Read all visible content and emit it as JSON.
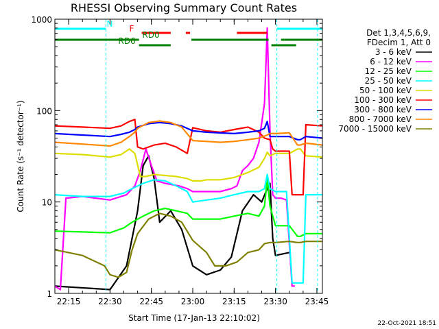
{
  "chart_data": {
    "type": "line",
    "title": "RHESSI Observing Summary Count Rates",
    "xlabel": "Start Time (17-Jan-13 22:10:02)",
    "ylabel": "Count Rate (s⁻¹ detector⁻¹)",
    "ylim": [
      1,
      1000
    ],
    "yscale": "log",
    "y_ticks": [
      {
        "value": 1,
        "label": "1"
      },
      {
        "value": 10,
        "label": "10"
      },
      {
        "value": 100,
        "label": "100"
      },
      {
        "value": 1000,
        "label": "1000"
      }
    ],
    "xlim_minutes": [
      0,
      97
    ],
    "x_ticks": [
      {
        "minute": 5,
        "label": "22:15"
      },
      {
        "minute": 20,
        "label": "22:30"
      },
      {
        "minute": 35,
        "label": "22:45"
      },
      {
        "minute": 50,
        "label": "23:00"
      },
      {
        "minute": 65,
        "label": "23:15"
      },
      {
        "minute": 80,
        "label": "23:30"
      },
      {
        "minute": 95,
        "label": "23:45"
      }
    ],
    "legend_header": [
      "Det 1,3,4,5,6,9,",
      "FDecim 1, Att 0"
    ],
    "legend_placement": "right",
    "series": [
      {
        "name": "3 - 6 keV",
        "color": "#000000",
        "points": [
          [
            0,
            1.2
          ],
          [
            20,
            1.1
          ],
          [
            26,
            2.0
          ],
          [
            30,
            8
          ],
          [
            32,
            25
          ],
          [
            34,
            32
          ],
          [
            36,
            18
          ],
          [
            38,
            6
          ],
          [
            42,
            8
          ],
          [
            46,
            5
          ],
          [
            50,
            2
          ],
          [
            55,
            1.6
          ],
          [
            60,
            1.8
          ],
          [
            64,
            2.5
          ],
          [
            68,
            8
          ],
          [
            72,
            12
          ],
          [
            75,
            10
          ],
          [
            77,
            14
          ],
          [
            78,
            16
          ],
          [
            79,
            4
          ],
          [
            80,
            2.6
          ],
          [
            85,
            2.8
          ]
        ]
      },
      {
        "name": "6 - 12 keV",
        "color": "#ff00ff",
        "points": [
          [
            0,
            1.2
          ],
          [
            2,
            1.1
          ],
          [
            4,
            11
          ],
          [
            10,
            11.5
          ],
          [
            20,
            10.5
          ],
          [
            26,
            12
          ],
          [
            29,
            15
          ],
          [
            31,
            22
          ],
          [
            33,
            38
          ],
          [
            35,
            25
          ],
          [
            37,
            17
          ],
          [
            40,
            16
          ],
          [
            45,
            15
          ],
          [
            48,
            14
          ],
          [
            50,
            13
          ],
          [
            55,
            13
          ],
          [
            60,
            13
          ],
          [
            64,
            14
          ],
          [
            66,
            15
          ],
          [
            68,
            22
          ],
          [
            70,
            25
          ],
          [
            72,
            30
          ],
          [
            74,
            45
          ],
          [
            76,
            120
          ],
          [
            77,
            800
          ],
          [
            78,
            60
          ],
          [
            79,
            12
          ],
          [
            80,
            11
          ],
          [
            82,
            11
          ],
          [
            84,
            10.5
          ],
          [
            86,
            1.2
          ],
          [
            87,
            1.2
          ]
        ]
      },
      {
        "name": "12 - 25 keV",
        "color": "#00ff00",
        "points": [
          [
            0,
            4.8
          ],
          [
            20,
            4.6
          ],
          [
            25,
            5.2
          ],
          [
            28,
            6
          ],
          [
            32,
            7
          ],
          [
            36,
            8
          ],
          [
            40,
            8.5
          ],
          [
            44,
            8
          ],
          [
            48,
            7.5
          ],
          [
            50,
            6.5
          ],
          [
            55,
            6.5
          ],
          [
            60,
            6.5
          ],
          [
            65,
            7
          ],
          [
            70,
            7.5
          ],
          [
            74,
            7
          ],
          [
            76,
            9
          ],
          [
            77,
            18
          ],
          [
            78,
            9
          ],
          [
            80,
            5.5
          ],
          [
            85,
            5.5
          ],
          [
            88,
            4.2
          ],
          [
            89,
            4.2
          ],
          [
            91,
            4.5
          ],
          [
            97,
            4.5
          ]
        ]
      },
      {
        "name": "25 - 50 keV",
        "color": "#00ffff",
        "points": [
          [
            0,
            12
          ],
          [
            10,
            11.5
          ],
          [
            20,
            11.5
          ],
          [
            25,
            12.5
          ],
          [
            28,
            14
          ],
          [
            32,
            16
          ],
          [
            36,
            17.5
          ],
          [
            40,
            17
          ],
          [
            44,
            15
          ],
          [
            48,
            13
          ],
          [
            50,
            10
          ],
          [
            55,
            10.5
          ],
          [
            60,
            11
          ],
          [
            65,
            12
          ],
          [
            70,
            13
          ],
          [
            74,
            13
          ],
          [
            76,
            14
          ],
          [
            77,
            20
          ],
          [
            78,
            14
          ],
          [
            80,
            13
          ],
          [
            84,
            13
          ],
          [
            86,
            1.3
          ],
          [
            90,
            1.3
          ],
          [
            91,
            12
          ],
          [
            97,
            12
          ]
        ]
      },
      {
        "name": "50 - 100 keV",
        "color": "#dddd00",
        "points": [
          [
            0,
            34
          ],
          [
            10,
            33
          ],
          [
            20,
            31
          ],
          [
            24,
            33
          ],
          [
            27,
            38
          ],
          [
            29,
            34
          ],
          [
            31,
            19
          ],
          [
            33,
            19
          ],
          [
            36,
            20
          ],
          [
            40,
            19.5
          ],
          [
            44,
            19
          ],
          [
            48,
            18
          ],
          [
            50,
            17
          ],
          [
            53,
            17
          ],
          [
            55,
            17.5
          ],
          [
            60,
            17.5
          ],
          [
            65,
            18.5
          ],
          [
            70,
            21
          ],
          [
            74,
            24
          ],
          [
            76,
            30
          ],
          [
            77,
            35
          ],
          [
            78,
            32
          ],
          [
            80,
            34
          ],
          [
            85,
            34
          ],
          [
            88,
            38
          ],
          [
            89,
            38
          ],
          [
            91,
            32
          ],
          [
            97,
            31
          ]
        ]
      },
      {
        "name": "100 - 300 keV",
        "color": "#ff0000",
        "points": [
          [
            0,
            68
          ],
          [
            10,
            66
          ],
          [
            20,
            64
          ],
          [
            24,
            68
          ],
          [
            27,
            76
          ],
          [
            29,
            80
          ],
          [
            30,
            40
          ],
          [
            32,
            38
          ],
          [
            36,
            42
          ],
          [
            40,
            44
          ],
          [
            44,
            40
          ],
          [
            48,
            34
          ],
          [
            50,
            65
          ],
          [
            55,
            60
          ],
          [
            60,
            58
          ],
          [
            65,
            62
          ],
          [
            70,
            66
          ],
          [
            74,
            58
          ],
          [
            76,
            50
          ],
          [
            78,
            48
          ],
          [
            79,
            38
          ],
          [
            80,
            36
          ],
          [
            85,
            36
          ],
          [
            86,
            12
          ],
          [
            90,
            12
          ],
          [
            91,
            70
          ],
          [
            97,
            68
          ]
        ]
      },
      {
        "name": "300 - 800 keV",
        "color": "#0000ff",
        "points": [
          [
            0,
            56
          ],
          [
            10,
            54
          ],
          [
            20,
            52
          ],
          [
            24,
            55
          ],
          [
            27,
            58
          ],
          [
            29,
            62
          ],
          [
            30,
            66
          ],
          [
            34,
            72
          ],
          [
            38,
            74
          ],
          [
            42,
            72
          ],
          [
            46,
            68
          ],
          [
            50,
            60
          ],
          [
            55,
            58
          ],
          [
            60,
            57
          ],
          [
            65,
            56
          ],
          [
            70,
            58
          ],
          [
            74,
            60
          ],
          [
            76,
            64
          ],
          [
            77,
            76
          ],
          [
            78,
            52
          ],
          [
            80,
            52
          ],
          [
            85,
            52
          ],
          [
            88,
            48
          ],
          [
            89,
            48
          ],
          [
            91,
            52
          ],
          [
            97,
            50
          ]
        ]
      },
      {
        "name": "800 - 7000 keV",
        "color": "#ff8800",
        "points": [
          [
            0,
            45
          ],
          [
            10,
            43
          ],
          [
            20,
            41
          ],
          [
            24,
            45
          ],
          [
            27,
            52
          ],
          [
            29,
            58
          ],
          [
            30,
            64
          ],
          [
            34,
            74
          ],
          [
            38,
            77
          ],
          [
            42,
            74
          ],
          [
            46,
            66
          ],
          [
            50,
            47
          ],
          [
            55,
            46
          ],
          [
            60,
            45
          ],
          [
            65,
            46
          ],
          [
            70,
            48
          ],
          [
            74,
            50
          ],
          [
            77,
            54
          ],
          [
            78,
            56
          ],
          [
            80,
            56
          ],
          [
            85,
            57
          ],
          [
            88,
            42
          ],
          [
            89,
            42
          ],
          [
            91,
            44
          ],
          [
            97,
            42
          ]
        ]
      },
      {
        "name": "7000 - 15000 keV",
        "color": "#808000",
        "points": [
          [
            0,
            3.0
          ],
          [
            10,
            2.6
          ],
          [
            18,
            2.0
          ],
          [
            20,
            1.6
          ],
          [
            23,
            1.5
          ],
          [
            26,
            1.7
          ],
          [
            28,
            3.0
          ],
          [
            30,
            4.5
          ],
          [
            34,
            6.5
          ],
          [
            38,
            7.5
          ],
          [
            42,
            7.0
          ],
          [
            46,
            6.0
          ],
          [
            50,
            3.8
          ],
          [
            55,
            2.8
          ],
          [
            58,
            2.0
          ],
          [
            62,
            2.0
          ],
          [
            66,
            2.2
          ],
          [
            70,
            2.8
          ],
          [
            74,
            3.0
          ],
          [
            76,
            3.5
          ],
          [
            78,
            3.6
          ],
          [
            80,
            3.6
          ],
          [
            85,
            3.7
          ],
          [
            88,
            3.6
          ],
          [
            89,
            3.6
          ],
          [
            91,
            3.7
          ],
          [
            97,
            3.7
          ]
        ]
      }
    ],
    "flags": [
      {
        "label": "N",
        "color": "#00ffff",
        "spans": [
          [
            0,
            18.5
          ],
          [
            80.5,
            97
          ]
        ]
      },
      {
        "label": "F",
        "color": "#ff0000",
        "spans": [
          [
            31.5,
            42
          ],
          [
            47.5,
            49
          ],
          [
            66,
            77
          ]
        ]
      },
      {
        "label": "RD0",
        "color": "#008000",
        "spans": [
          [
            0,
            30.5
          ],
          [
            49.5,
            77.5
          ],
          [
            82,
            97
          ]
        ]
      },
      {
        "label": "RD6",
        "color": "#008000",
        "spans": [
          [
            30.5,
            42
          ],
          [
            78.5,
            87.5
          ]
        ]
      }
    ],
    "vertical_markers_minutes": [
      18.5,
      80.5,
      95.3
    ],
    "grid": false
  },
  "footer_date": "22-Oct-2021 18:51",
  "colors": {
    "background": "#ffffff",
    "axes": "#000000"
  }
}
